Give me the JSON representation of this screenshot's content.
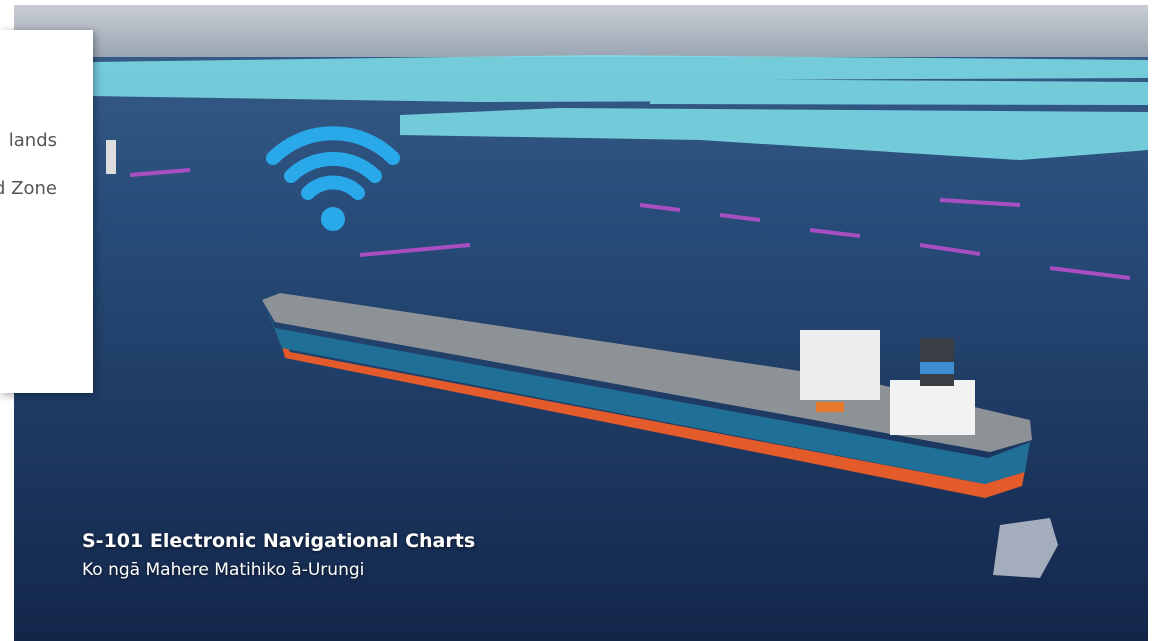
{
  "overlay_card": {
    "lines": [
      "lands",
      "d Zone"
    ]
  },
  "video": {
    "caption_title": "S-101 Electronic Navigational Charts",
    "caption_subtitle": "Ko ngā Mahere Matihiko ā-Urungi"
  }
}
